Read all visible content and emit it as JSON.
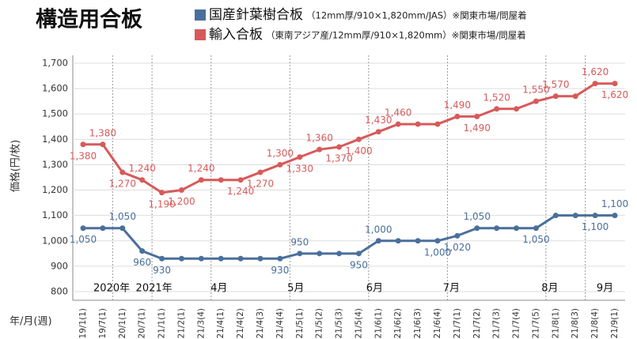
{
  "chart_data": {
    "type": "line",
    "title": "構造用合板",
    "y_label": "価格(円/枚)",
    "x_label": "年/月(週)",
    "categories": [
      "19/1(1)",
      "19/7(1)",
      "20/1(1)",
      "20/7(1)",
      "21/1(1)",
      "21/2(1)",
      "21/3(4)",
      "21/4(1)",
      "21/4(2)",
      "21/4(3)",
      "21/4(4)",
      "21/5(1)",
      "21/5(2)",
      "21/5(3)",
      "21/5(4)",
      "21/6(1)",
      "21/6(2)",
      "21/6(3)",
      "21/6(4)",
      "21/7(1)",
      "21/7(2)",
      "21/7(3)",
      "21/7(4)",
      "21/7(5)",
      "21/8(1)",
      "21/8(3)",
      "21/8(4)",
      "21/9(1)"
    ],
    "period_labels": [
      "2020年",
      "2021年",
      "4月",
      "5月",
      "6月",
      "7月",
      "8月",
      "9月"
    ],
    "series": [
      {
        "name": "国産針葉樹合板",
        "note": "（12mm厚/910×1,820mm/JAS）※関東市場/問屋着",
        "color": "#4a6f9c",
        "values": [
          1050,
          1050,
          1050,
          960,
          930,
          930,
          930,
          930,
          930,
          930,
          930,
          950,
          950,
          950,
          950,
          1000,
          1000,
          1000,
          1000,
          1020,
          1050,
          1050,
          1050,
          1050,
          1100,
          1100,
          1100,
          1100
        ],
        "value_labels": [
          "1,050",
          null,
          "1,050",
          "960",
          "930",
          null,
          null,
          null,
          null,
          null,
          "930",
          "950",
          null,
          null,
          "950",
          "1,000",
          null,
          null,
          "1,000",
          "1,020",
          "1,050",
          null,
          null,
          "1,050",
          null,
          null,
          "1,100",
          "1,100"
        ]
      },
      {
        "name": "輸入合板",
        "note": "（東南アジア産/12mm厚/910×1,820mm）※関東市場/問屋着",
        "color": "#d75a5a",
        "values": [
          1380,
          1380,
          1270,
          1240,
          1190,
          1200,
          1240,
          1240,
          1240,
          1270,
          1300,
          1330,
          1360,
          1370,
          1400,
          1430,
          1460,
          1460,
          1460,
          1490,
          1490,
          1520,
          1520,
          1550,
          1570,
          1570,
          1620,
          1620
        ],
        "value_labels": [
          "1,380",
          "1,380",
          "1,270",
          "1,240",
          "1,190",
          "1,200",
          "1,240",
          null,
          "1,240",
          "1,270",
          "1,300",
          "1,330",
          "1,360",
          "1,370",
          "1,400",
          "1,430",
          "1,460",
          null,
          null,
          "1,490",
          "1,490",
          "1,520",
          null,
          "1,550",
          "1,570",
          null,
          "1,620",
          "1,620"
        ]
      }
    ],
    "ylim": [
      800,
      1700
    ],
    "yticks": [
      800,
      900,
      {
        "value": 1000,
        "label": "1,000"
      },
      {
        "value": 1100,
        "label": "1,100"
      },
      {
        "value": 1200,
        "label": "1,200"
      },
      {
        "value": 1300,
        "label": "1,300"
      },
      {
        "value": 1400,
        "label": "1,400"
      },
      {
        "value": 1500,
        "label": "1,500"
      },
      {
        "value": 1600,
        "label": "1,600"
      },
      {
        "value": 1700,
        "label": "1,700"
      }
    ],
    "grid": true
  }
}
